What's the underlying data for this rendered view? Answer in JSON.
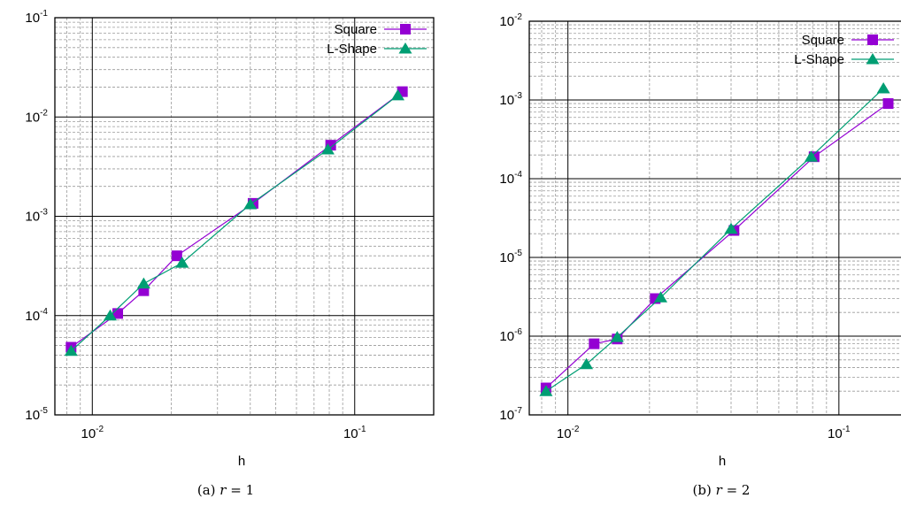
{
  "chart_data": [
    {
      "type": "line",
      "xscale": "log",
      "yscale": "log",
      "xlim": [
        0.0072,
        0.2
      ],
      "ylim": [
        1e-05,
        0.1
      ],
      "grid": true,
      "legend_position": "top-right",
      "xlabel": "h",
      "ylabel": "",
      "x_ticks": [
        {
          "base": "10",
          "exp": "-2",
          "value": 0.01
        },
        {
          "base": "10",
          "exp": "-1",
          "value": 0.1
        }
      ],
      "y_ticks": [
        {
          "base": "10",
          "exp": "-5",
          "value": 1e-05
        },
        {
          "base": "10",
          "exp": "-4",
          "value": 0.0001
        },
        {
          "base": "10",
          "exp": "-3",
          "value": 0.001
        },
        {
          "base": "10",
          "exp": "-2",
          "value": 0.01
        },
        {
          "base": "10",
          "exp": "-1",
          "value": 0.1
        }
      ],
      "caption": {
        "prefix": "(a) ",
        "var": "r",
        "rest": " = 1"
      },
      "series": [
        {
          "name": "Square",
          "color": "#9400D3",
          "marker": "square",
          "x": [
            0.0083,
            0.0125,
            0.0157,
            0.021,
            0.041,
            0.081,
            0.152
          ],
          "y": [
            4.8e-05,
            0.000105,
            0.000178,
            0.0004,
            0.00135,
            0.0052,
            0.018
          ]
        },
        {
          "name": "L-Shape",
          "color": "#009E73",
          "marker": "triangle",
          "x": [
            0.0083,
            0.0117,
            0.0157,
            0.022,
            0.04,
            0.079,
            0.146
          ],
          "y": [
            4.4e-05,
            0.0001,
            0.00021,
            0.00034,
            0.00132,
            0.0047,
            0.0165
          ]
        }
      ]
    },
    {
      "type": "line",
      "xscale": "log",
      "yscale": "log",
      "xlim": [
        0.0072,
        0.2
      ],
      "ylim": [
        1e-07,
        0.01
      ],
      "grid": true,
      "legend_position": "top-right",
      "xlabel": "h",
      "ylabel": "",
      "x_ticks": [
        {
          "base": "10",
          "exp": "-2",
          "value": 0.01
        },
        {
          "base": "10",
          "exp": "-1",
          "value": 0.1
        }
      ],
      "y_ticks": [
        {
          "base": "10",
          "exp": "-7",
          "value": 1e-07
        },
        {
          "base": "10",
          "exp": "-6",
          "value": 1e-06
        },
        {
          "base": "10",
          "exp": "-5",
          "value": 1e-05
        },
        {
          "base": "10",
          "exp": "-4",
          "value": 0.0001
        },
        {
          "base": "10",
          "exp": "-3",
          "value": 0.001
        },
        {
          "base": "10",
          "exp": "-2",
          "value": 0.01
        }
      ],
      "caption": {
        "prefix": "(b) ",
        "var": "r",
        "rest": " = 2"
      },
      "series": [
        {
          "name": "Square",
          "color": "#9400D3",
          "marker": "square",
          "x": [
            0.0083,
            0.0125,
            0.0152,
            0.021,
            0.041,
            0.081,
            0.152
          ],
          "y": [
            2.2e-07,
            8e-07,
            9.2e-07,
            3e-06,
            2.2e-05,
            0.00019,
            0.0009
          ]
        },
        {
          "name": "L-Shape",
          "color": "#009E73",
          "marker": "triangle",
          "x": [
            0.0083,
            0.0117,
            0.0152,
            0.022,
            0.04,
            0.079,
            0.146
          ],
          "y": [
            2e-07,
            4.4e-07,
            9.7e-07,
            3.1e-06,
            2.3e-05,
            0.00019,
            0.0014
          ]
        }
      ]
    }
  ]
}
